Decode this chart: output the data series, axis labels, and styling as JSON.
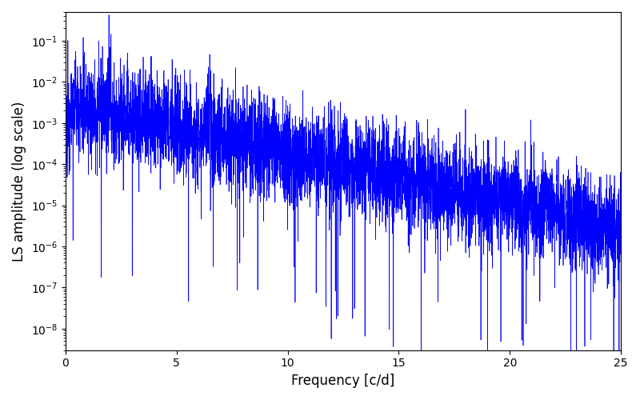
{
  "title": "",
  "xlabel": "Frequency [c/d]",
  "ylabel": "LS amplitude (log scale)",
  "line_color": "#0000FF",
  "xlim": [
    0,
    25
  ],
  "ylim": [
    3e-09,
    0.5
  ],
  "xticks": [
    0,
    5,
    10,
    15,
    20,
    25
  ],
  "figsize": [
    8.0,
    5.0
  ],
  "dpi": 100,
  "seed": 12345,
  "n_points": 5000,
  "freq_max": 25.0,
  "base_amplitude": 0.003,
  "decay_rate": 0.28,
  "log_noise_std": 1.4,
  "background_color": "#ffffff"
}
